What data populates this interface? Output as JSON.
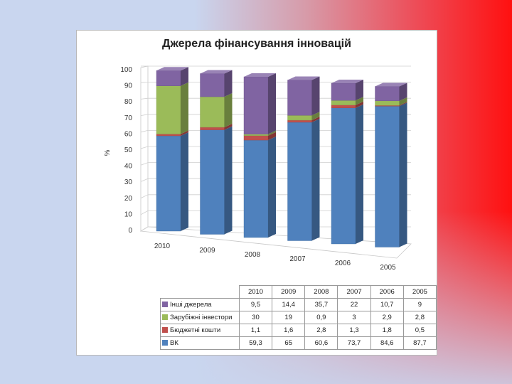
{
  "chart_data": {
    "type": "bar",
    "stacked": true,
    "three_d": true,
    "title": "Джерела фінансування інновацій",
    "ylabel": "%",
    "ylim": [
      0,
      100
    ],
    "yticks": [
      0,
      10,
      20,
      30,
      40,
      50,
      60,
      70,
      80,
      90,
      100
    ],
    "categories": [
      "2010",
      "2009",
      "2008",
      "2007",
      "2006",
      "2005"
    ],
    "series": [
      {
        "name": "ВК",
        "color": "#4f81bd",
        "values": [
          59.3,
          65,
          60.6,
          73.7,
          84.6,
          87.7
        ]
      },
      {
        "name": "Бюджетні кошти",
        "color": "#c0504d",
        "values": [
          1.1,
          1.6,
          2.8,
          1.3,
          1.8,
          0.5
        ]
      },
      {
        "name": "Зарубіжні інвестори",
        "color": "#9bbb59",
        "values": [
          30,
          19,
          0.9,
          3,
          2.9,
          2.8
        ]
      },
      {
        "name": "Інші джерела",
        "color": "#8064a2",
        "values": [
          9.5,
          14.4,
          35.7,
          22,
          10.7,
          9
        ]
      }
    ],
    "table_labels": [
      {
        "name": "Інші джерела",
        "series": 3
      },
      {
        "name": "Зарубіжні інвестори",
        "series": 2
      },
      {
        "name": "Бюджетні кошти",
        "series": 1
      },
      {
        "name": "ВК",
        "series": 0
      }
    ],
    "grid": true,
    "legend": "data-table-below"
  }
}
